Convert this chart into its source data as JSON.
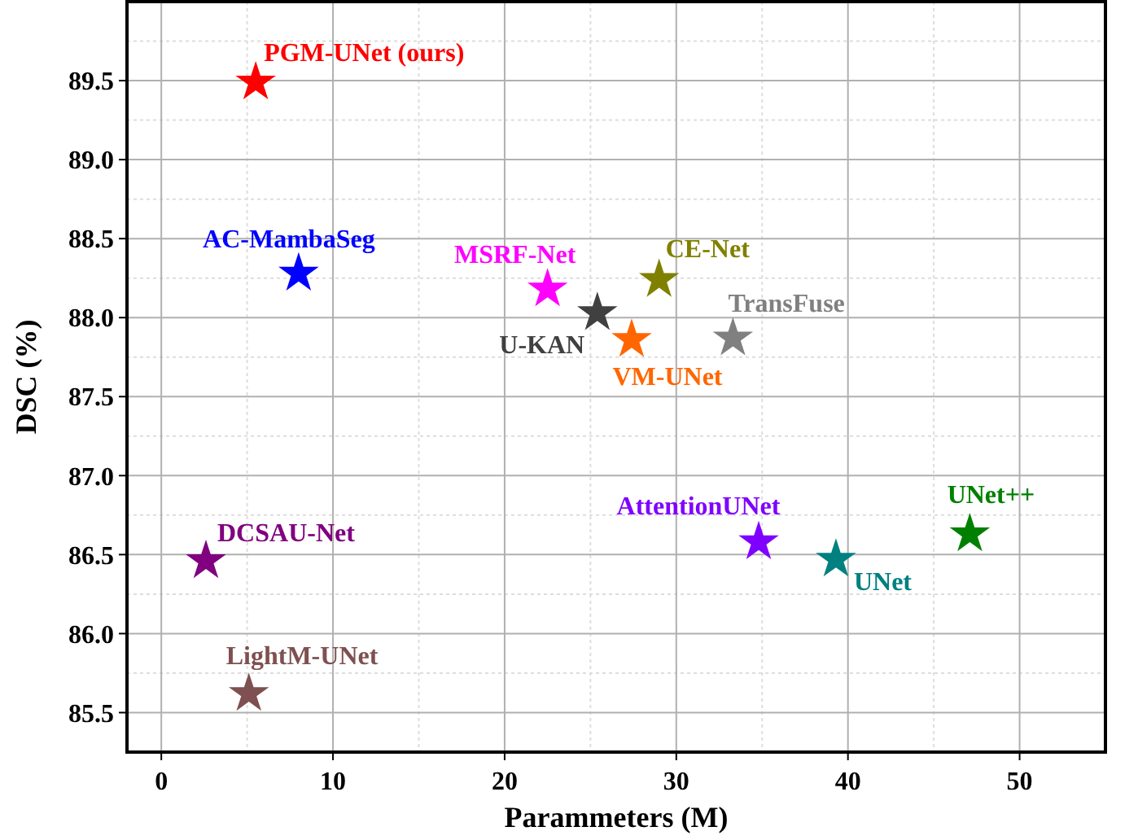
{
  "chart_data": {
    "type": "scatter",
    "xlabel": "Parammeters (M)",
    "ylabel": "DSC (%)",
    "xlim": [
      -2,
      55
    ],
    "xticks": [
      0,
      10,
      20,
      30,
      40,
      50
    ],
    "ylim": [
      85.25,
      90.0
    ],
    "yticks": [
      {
        "value": 85.5,
        "label": "85.5"
      },
      {
        "value": 86.0,
        "label": "86.0"
      },
      {
        "value": 86.5,
        "label": "86.5"
      },
      {
        "value": 87.0,
        "label": "87.0"
      },
      {
        "value": 87.5,
        "label": "87.5"
      },
      {
        "value": 88.0,
        "label": "88.0"
      },
      {
        "value": 88.5,
        "label": "88.5"
      },
      {
        "value": 89.0,
        "label": "89.0"
      },
      {
        "value": 89.5,
        "label": "89.5"
      }
    ],
    "grid": true,
    "marker": "star",
    "series": [
      {
        "name": "PGM-UNet (ours)",
        "color": "#ff0000",
        "x": [
          5.5
        ],
        "values": [
          89.49
        ]
      },
      {
        "name": "AC-MambaSeg",
        "color": "#0000ff",
        "x": [
          8.0
        ],
        "values": [
          88.28
        ]
      },
      {
        "name": "MSRF-Net",
        "color": "#ff00ff",
        "x": [
          22.5
        ],
        "values": [
          88.18
        ]
      },
      {
        "name": "U-KAN",
        "color": "#404040",
        "x": [
          25.4
        ],
        "values": [
          88.03
        ]
      },
      {
        "name": "CE-Net",
        "color": "#808000",
        "x": [
          29.0
        ],
        "values": [
          88.24
        ]
      },
      {
        "name": "VM-UNet",
        "color": "#ff6600",
        "x": [
          27.4
        ],
        "values": [
          87.86
        ]
      },
      {
        "name": "TransFuse",
        "color": "#808080",
        "x": [
          33.3
        ],
        "values": [
          87.87
        ]
      },
      {
        "name": "DCSAU-Net",
        "color": "#800080",
        "x": [
          2.6
        ],
        "values": [
          86.46
        ]
      },
      {
        "name": "LightM-UNet",
        "color": "#7f5050",
        "x": [
          5.1
        ],
        "values": [
          85.62
        ]
      },
      {
        "name": "AttentionUNet",
        "color": "#8000ff",
        "x": [
          34.8
        ],
        "values": [
          86.58
        ]
      },
      {
        "name": "UNet",
        "color": "#008080",
        "x": [
          39.3
        ],
        "values": [
          86.47
        ]
      },
      {
        "name": "UNet++",
        "color": "#008000",
        "x": [
          47.1
        ],
        "values": [
          86.63
        ]
      }
    ]
  }
}
